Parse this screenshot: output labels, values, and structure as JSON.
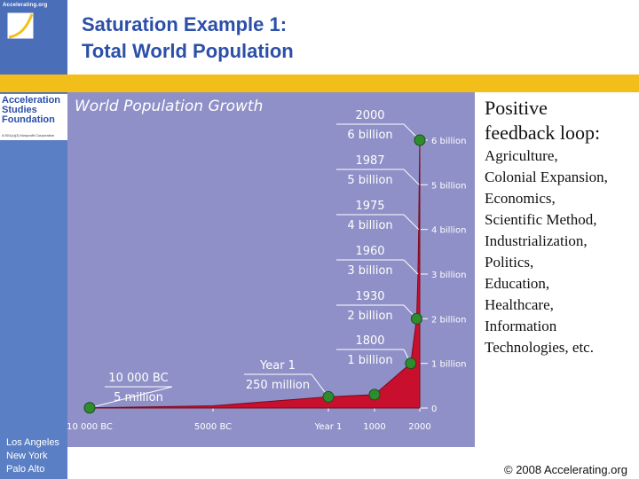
{
  "slide": {
    "title_line1": "Saturation Example 1:",
    "title_line2": "Total World Population",
    "copyright": "© 2008 Accelerating.org"
  },
  "sidebar": {
    "site": "Accelerating.org",
    "org_line1": "Acceleration",
    "org_line2": "Studies",
    "org_line3": "Foundation",
    "org_copy": "A 501(c)(3) Nonprofit Corporation",
    "cities": [
      "Los Angeles",
      "New York",
      "Palo Alto"
    ]
  },
  "chart_data": {
    "type": "area",
    "title": "World Population Growth",
    "x": [
      "10 000 BC",
      "5000 BC",
      "Year 1",
      "1000",
      "1800",
      "1930",
      "1960",
      "1975",
      "1987",
      "2000"
    ],
    "y_billion": [
      0.005,
      0.05,
      0.25,
      0.3,
      1,
      2,
      3,
      4,
      5,
      6
    ],
    "x_tick_labels": [
      "10 000 BC",
      "5000 BC",
      "Year 1",
      "1000",
      "2000"
    ],
    "y_tick_labels": [
      "0",
      "1 billion",
      "2 billion",
      "3 billion",
      "4 billion",
      "5 billion",
      "6 billion"
    ],
    "ylim": [
      0,
      6
    ],
    "annotations": [
      {
        "year": "2000",
        "value": "6 billion"
      },
      {
        "year": "1987",
        "value": "5 billion"
      },
      {
        "year": "1975",
        "value": "4 billion"
      },
      {
        "year": "1960",
        "value": "3 billion"
      },
      {
        "year": "1930",
        "value": "2 billion"
      },
      {
        "year": "1800",
        "value": "1 billion"
      },
      {
        "year": "Year 1",
        "value": "250 million"
      },
      {
        "year": "10 000 BC",
        "value": "5 million"
      }
    ],
    "colors": {
      "background": "#8f90c7",
      "area": "#c8102e",
      "marker": "#2e8b2e",
      "grid": "#ffffff"
    }
  },
  "right_text": {
    "heading_line1": "Positive",
    "heading_line2": "feedback loop:",
    "items": [
      "Agriculture,",
      "Colonial Expansion,",
      "Economics,",
      "Scientific Method,",
      "Industrialization,",
      "Politics,",
      "Education,",
      "Healthcare,",
      "Information",
      "Technologies, etc."
    ]
  }
}
